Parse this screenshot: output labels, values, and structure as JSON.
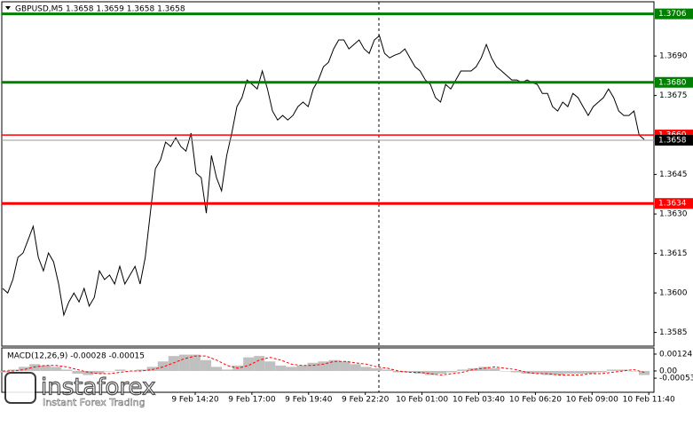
{
  "chart_data": [
    {
      "type": "line",
      "title": "GBPUSD,M5  1.3658 1.3659 1.3658 1.3658",
      "color": "#000000",
      "ylim": [
        1.35798,
        1.37106
      ],
      "yticks": [
        {
          "value": 1.369,
          "label": "1.3690"
        },
        {
          "value": 1.3675,
          "label": "1.3675"
        },
        {
          "value": 1.3645,
          "label": "1.3645"
        },
        {
          "value": 1.363,
          "label": "1.3630"
        },
        {
          "value": 1.3615,
          "label": "1.3615"
        },
        {
          "value": 1.36,
          "label": "1.3600"
        },
        {
          "value": 1.3585,
          "label": "1.3585"
        }
      ],
      "levels": [
        {
          "value": 1.3706,
          "color": "#008000"
        },
        {
          "value": 1.368,
          "label": "1.3680",
          "color": "#008000"
        },
        {
          "value": 1.366,
          "label": "1.3660",
          "color": "#ff0000"
        },
        {
          "value": 1.3634,
          "color": "#ff0000"
        },
        {
          "value": 1.3658,
          "color": "#000000"
        }
      ],
      "annotations": [
        "instaforex",
        "Instant Forex Trading"
      ],
      "values": [
        1.36017,
        1.36,
        1.36051,
        1.36135,
        1.36152,
        1.36202,
        1.36253,
        1.36135,
        1.36084,
        1.36152,
        1.36118,
        1.36034,
        1.35916,
        1.35966,
        1.36,
        1.35966,
        1.36017,
        1.3595,
        1.35983,
        1.36084,
        1.36051,
        1.36068,
        1.36034,
        1.36101,
        1.36034,
        1.36068,
        1.36101,
        1.36034,
        1.36135,
        1.36303,
        1.36472,
        1.36506,
        1.36573,
        1.36556,
        1.3659,
        1.36556,
        1.36539,
        1.36607,
        1.36455,
        1.36438,
        1.36303,
        1.36522,
        1.36438,
        1.36388,
        1.36522,
        1.36607,
        1.36708,
        1.36742,
        1.36809,
        1.36792,
        1.36775,
        1.36843,
        1.36775,
        1.36691,
        1.36657,
        1.36674,
        1.36657,
        1.36674,
        1.36708,
        1.36725,
        1.36708,
        1.36775,
        1.36809,
        1.36859,
        1.36876,
        1.36927,
        1.36961,
        1.36961,
        1.36927,
        1.36944,
        1.36961,
        1.36927,
        1.3691,
        1.36961,
        1.36977,
        1.3691,
        1.36893,
        1.36903,
        1.3691,
        1.36927,
        1.36893,
        1.36859,
        1.36843,
        1.36809,
        1.36792,
        1.36742,
        1.36725,
        1.36792,
        1.36775,
        1.36809,
        1.36843,
        1.36843,
        1.36843,
        1.36859,
        1.36893,
        1.36944,
        1.36893,
        1.36859,
        1.36843,
        1.36826,
        1.36809,
        1.36809,
        1.36799,
        1.36809,
        1.36799,
        1.36792,
        1.36758,
        1.36758,
        1.36708,
        1.36691,
        1.36725,
        1.36708,
        1.36758,
        1.36742,
        1.36708,
        1.36674,
        1.36708,
        1.36725,
        1.36742,
        1.36775,
        1.36742,
        1.36691,
        1.36674,
        1.36674,
        1.36691,
        1.366,
        1.36583
      ]
    },
    {
      "type": "macd",
      "title": "MACD(12,26,9) -0.00028 -0.00015",
      "ylim": [
        -0.00144,
        0.00163
      ],
      "yticks": [
        0.00124,
        {
          "value": 0,
          "label": "0.00"
        },
        -0.00053
      ],
      "xtick_labels": [
        "9 Feb 14:20",
        "9 Feb 17:00",
        "9 Feb 19:40",
        "9 Feb 22:20",
        "10 Feb 01:00",
        "10 Feb 03:40",
        "10 Feb 06:20",
        "10 Feb 09:00",
        "10 Feb 11:40"
      ],
      "histogram": {
        "color": "#c0c0c0",
        "values": [
          -0.0001,
          0.0001,
          0.0003,
          0.0005,
          0.0004,
          0.0003,
          0.0001,
          -0.0002,
          -0.0003,
          -0.0002,
          0,
          0.0001,
          0,
          0.0001,
          0.0003,
          0.0007,
          0.0011,
          0.0012,
          0.0012,
          0.0008,
          0.0003,
          0.0001,
          0.0004,
          0.001,
          0.0011,
          0.0007,
          0.0004,
          0.0003,
          0.0004,
          0.0006,
          0.0007,
          0.0008,
          0.0007,
          0.0005,
          0.0003,
          0.0002,
          0.0001,
          -0.0001,
          -0.0001,
          -0.0002,
          -0.0003,
          -0.0002,
          -0.0001,
          0.0001,
          0.0002,
          0.0003,
          0.0002,
          0,
          -0.0001,
          -0.0002,
          -0.0002,
          -0.0003,
          -0.0003,
          -0.0002,
          -0.0002,
          -0.0002,
          -0.0001,
          0.0001,
          0.0001,
          0,
          -0.0003
        ]
      },
      "signal": {
        "color": "#ff0000",
        "values": [
          0,
          0,
          0.0001,
          0.0003,
          0.0004,
          0.0004,
          0.0003,
          0.0001,
          -0.0001,
          -0.0002,
          -0.0002,
          -0.0001,
          0,
          0,
          0.0001,
          0.0003,
          0.0006,
          0.0009,
          0.0011,
          0.0011,
          0.0008,
          0.0004,
          0.0002,
          0.0004,
          0.0008,
          0.001,
          0.0008,
          0.0005,
          0.0004,
          0.0004,
          0.0005,
          0.0007,
          0.0007,
          0.0006,
          0.0005,
          0.0003,
          0.0002,
          0,
          -0.0001,
          -0.0001,
          -0.0002,
          -0.0003,
          -0.0002,
          -0.0001,
          0.0001,
          0.0002,
          0.0003,
          0.0002,
          0.0001,
          -0.0001,
          -0.0002,
          -0.0002,
          -0.0003,
          -0.0003,
          -0.0003,
          -0.0002,
          -0.0002,
          -0.0001,
          0,
          0.0001,
          -0.0001
        ]
      }
    }
  ]
}
